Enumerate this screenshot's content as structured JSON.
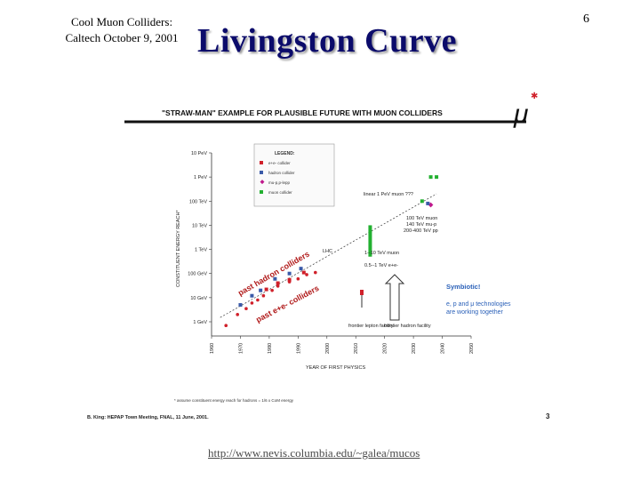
{
  "slide": {
    "header_line1": "Cool Muon Colliders:",
    "header_line2": "Caltech October 9, 2001",
    "title": "Livingston Curve",
    "page_number": "6",
    "footer_link": "http://www.nevis.columbia.edu/~galea/mucos",
    "figure_banner": "\"STRAW-MAN\" EXAMPLE FOR PLAUSIBLE FUTURE WITH MUON COLLIDERS",
    "figure_logo": "μ",
    "figure_footnote": "* assume constituent energy reach for hadrons = 1/6 x CoM energy",
    "figure_credit": "B. King: HEPAP Town Meeting, FNAL, 11 June, 2001.",
    "figure_page": "3"
  },
  "chart_data": {
    "type": "scatter",
    "title": "",
    "xlabel": "YEAR OF FIRST PHYSICS",
    "ylabel": "CONSTITUENT ENERGY REACH*",
    "xlim": [
      1960,
      2050
    ],
    "x_ticks": [
      "1960",
      "1970",
      "1980",
      "1990",
      "2000",
      "2010",
      "2020",
      "2030",
      "2040",
      "2050"
    ],
    "y_scale": "log",
    "y_ticks": [
      {
        "label": "1 GeV",
        "value": 1
      },
      {
        "label": "10 GeV",
        "value": 10
      },
      {
        "label": "100 GeV",
        "value": 100
      },
      {
        "label": "1 TeV",
        "value": 1000
      },
      {
        "label": "10 TeV",
        "value": 10000
      },
      {
        "label": "100 TeV",
        "value": 100000
      },
      {
        "label": "1 PeV",
        "value": 1000000
      },
      {
        "label": "10 PeV",
        "value": 10000000
      }
    ],
    "legend": {
      "title": "LEGEND:",
      "placement": "top-center",
      "items": [
        {
          "label": "e+e- collider",
          "color": "#d0202a",
          "marker": "square"
        },
        {
          "label": "hadron collider",
          "color": "#3a5aa8",
          "marker": "square"
        },
        {
          "label": "mu-p,p-lepp",
          "color": "#c0188c",
          "marker": "diamond"
        },
        {
          "label": "muon collider",
          "color": "#22b030",
          "marker": "square"
        }
      ]
    },
    "series": [
      {
        "name": "e+e- collider",
        "color": "#d0202a",
        "marker": "circle",
        "points": [
          [
            1965,
            0.7
          ],
          [
            1969,
            2
          ],
          [
            1972,
            3.5
          ],
          [
            1974,
            6
          ],
          [
            1976,
            8
          ],
          [
            1978,
            12
          ],
          [
            1981,
            20
          ],
          [
            1983,
            30
          ],
          [
            1987,
            45
          ],
          [
            1990,
            60
          ],
          [
            1993,
            90
          ],
          [
            1996,
            110
          ]
        ]
      },
      {
        "name": "hadron collider",
        "color": "#3a5aa8",
        "marker": "square",
        "points": [
          [
            1970,
            5
          ],
          [
            1974,
            12
          ],
          [
            1977,
            20
          ],
          [
            1982,
            60
          ],
          [
            1987,
            100
          ],
          [
            1991,
            160
          ]
        ]
      },
      {
        "name": "e+e- collider (future)",
        "color": "#d0202a",
        "marker": "square",
        "points": [
          [
            1979,
            22
          ],
          [
            1983,
            40
          ],
          [
            1987,
            55
          ],
          [
            1992,
            110
          ]
        ]
      },
      {
        "name": "muon collider",
        "color": "#22b030",
        "marker": "square",
        "points": [
          [
            2036,
            1000000
          ],
          [
            2038,
            1000000
          ],
          [
            2033,
            100000
          ]
        ]
      },
      {
        "name": "mu-p",
        "color": "#c0188c",
        "marker": "diamond",
        "points": [
          [
            2036,
            70000
          ]
        ]
      },
      {
        "name": "hadron collider (future)",
        "color": "#3a5aa8",
        "marker": "square",
        "points": [
          [
            2035,
            80000
          ]
        ]
      }
    ],
    "annotations": [
      {
        "text": "linear 1 PeV muon ???",
        "color": "#222222"
      },
      {
        "text": "100 TeV muon",
        "color": "#222222"
      },
      {
        "text": "140 TeV mu-p",
        "color": "#222222"
      },
      {
        "text": "200-400 TeV pp",
        "color": "#222222"
      },
      {
        "text": "LHC",
        "color": "#222222"
      },
      {
        "text": "1--10 TeV muon",
        "color": "#222222"
      },
      {
        "text": "0.5--1 TeV e+e-",
        "color": "#222222"
      },
      {
        "text": "past hadron colliders",
        "color": "#b01818"
      },
      {
        "text": "past e+e- colliders",
        "color": "#b01818"
      },
      {
        "text": "frontier lepton facility",
        "color": "#222222"
      },
      {
        "text": "frontier hadron facility",
        "color": "#222222"
      },
      {
        "text": "Symbiotic!",
        "color": "#2a60b8"
      },
      {
        "text": "e, p and μ technologies",
        "color": "#2a60b8"
      },
      {
        "text": "are working together",
        "color": "#2a60b8"
      }
    ]
  }
}
